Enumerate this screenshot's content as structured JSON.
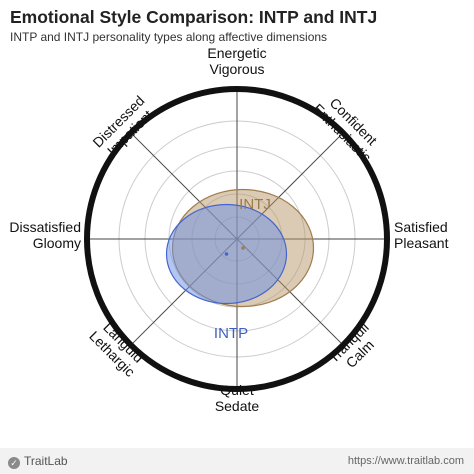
{
  "header": {
    "title": "Emotional Style Comparison: INTP and INTJ",
    "subtitle": "INTP and INTJ personality types along affective dimensions"
  },
  "chart_data": {
    "type": "radar-ellipse",
    "rings": 5,
    "axes": [
      {
        "id": "top",
        "line1": "Energetic",
        "line2": "Vigorous"
      },
      {
        "id": "top-right",
        "line1": "Confident",
        "line2": "Enthusiastic"
      },
      {
        "id": "right",
        "line1": "Satisfied",
        "line2": "Pleasant"
      },
      {
        "id": "bottom-right",
        "line1": "Tranquil",
        "line2": "Calm"
      },
      {
        "id": "bottom",
        "line1": "Quiet",
        "line2": "Sedate"
      },
      {
        "id": "bottom-left",
        "line1": "Languid",
        "line2": "Lethargic"
      },
      {
        "id": "left",
        "line1": "Dissatisfied",
        "line2": "Gloomy"
      },
      {
        "id": "top-left",
        "line1": "Distressed",
        "line2": "Impatient"
      }
    ],
    "series": [
      {
        "name": "INTP",
        "center": [
          -0.07,
          -0.1
        ],
        "radius_x": 0.4,
        "radius_y": 0.33,
        "fill": "#6a8fe8",
        "stroke": "#4466cc",
        "label_color": "#3f5fc4"
      },
      {
        "name": "INTJ",
        "center": [
          0.04,
          -0.06
        ],
        "radius_x": 0.47,
        "radius_y": 0.39,
        "fill": "#b8976a",
        "stroke": "#a07d4e",
        "label_color": "#9b7a4a"
      }
    ]
  },
  "footer": {
    "brand": "TraitLab",
    "url": "https://www.traitlab.com"
  }
}
